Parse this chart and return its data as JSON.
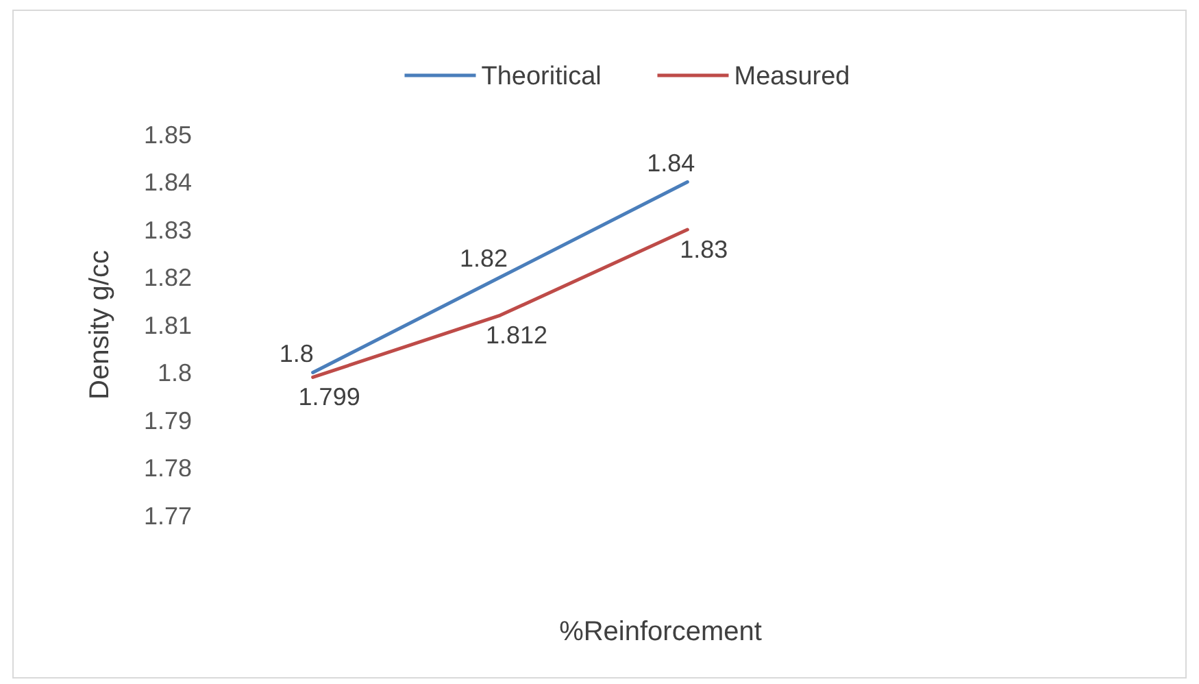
{
  "chart_data": {
    "type": "line",
    "xlabel": "%Reinforcement",
    "ylabel": "Density g/cc",
    "categories": [
      null,
      null,
      null
    ],
    "series": [
      {
        "name": "Theoritical",
        "color": "#4a7ebb",
        "values": [
          1.8,
          1.82,
          1.84
        ]
      },
      {
        "name": "Measured",
        "color": "#be4b48",
        "values": [
          1.799,
          1.812,
          1.83
        ]
      }
    ],
    "ylim": [
      1.77,
      1.85
    ],
    "yticks": [
      1.77,
      1.78,
      1.79,
      1.8,
      1.81,
      1.82,
      1.83,
      1.84,
      1.85
    ],
    "tick_labels": "y",
    "legend": "top",
    "data_labels": true,
    "grid": false,
    "marker": "none",
    "line_style": "solid"
  }
}
